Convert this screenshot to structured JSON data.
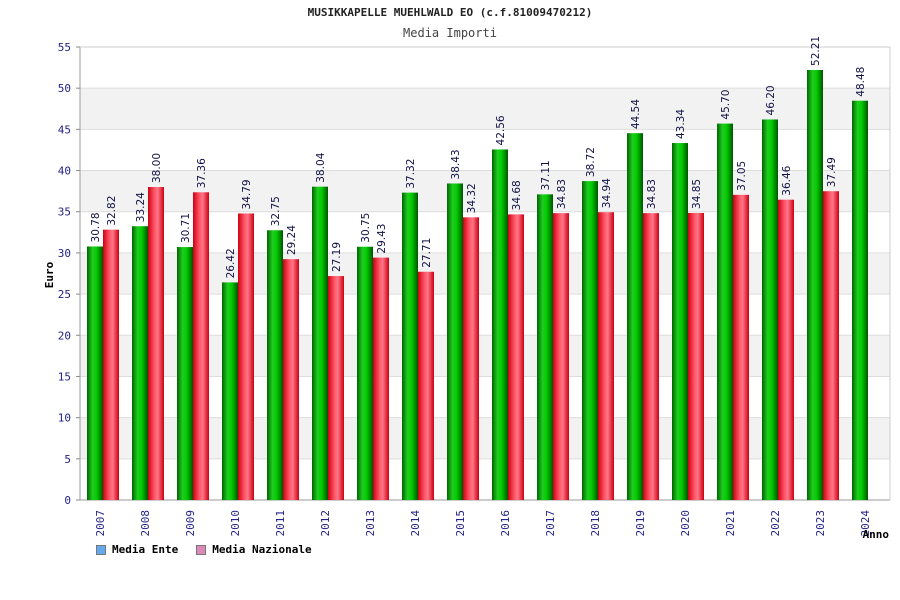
{
  "chart_data": {
    "type": "bar",
    "title": "MUSIKKAPELLE MUEHLWALD EO (c.f.81009470212)",
    "subtitle": "Media Importi",
    "xlabel": "Anno",
    "ylabel": "Euro",
    "ylim": [
      0,
      55
    ],
    "yticks": [
      0,
      5,
      10,
      15,
      20,
      25,
      30,
      35,
      40,
      45,
      50,
      55
    ],
    "categories": [
      "2007",
      "2008",
      "2009",
      "2010",
      "2011",
      "2012",
      "2013",
      "2014",
      "2015",
      "2016",
      "2017",
      "2018",
      "2019",
      "2020",
      "2021",
      "2022",
      "2023",
      "2024"
    ],
    "series": [
      {
        "name": "Media Ente",
        "color": "#00aa00",
        "legend_color": "#66aaee",
        "values": [
          30.78,
          33.24,
          30.71,
          26.42,
          32.75,
          38.04,
          30.75,
          37.32,
          38.43,
          42.56,
          37.11,
          38.72,
          44.54,
          43.34,
          45.7,
          46.2,
          52.21,
          48.48
        ],
        "labels": [
          "30.78",
          "33.24",
          "30.71",
          "26.42",
          "32.75",
          "38.04",
          "30.75",
          "37.32",
          "38.43",
          "42.56",
          "37.11",
          "38.72",
          "44.54",
          "43.34",
          "45.70",
          "46.20",
          "52.21",
          "48.48"
        ]
      },
      {
        "name": "Media Nazionale",
        "color": "#ee1122",
        "legend_color": "#dd88bb",
        "values": [
          32.82,
          38.0,
          37.36,
          34.79,
          29.24,
          27.19,
          29.43,
          27.71,
          34.32,
          34.68,
          34.83,
          34.94,
          34.83,
          34.85,
          37.05,
          36.46,
          37.49,
          null
        ],
        "labels": [
          "32.82",
          "38.00",
          "37.36",
          "34.79",
          "29.24",
          "27.19",
          "29.43",
          "27.71",
          "34.32",
          "34.68",
          "34.83",
          "34.94",
          "34.83",
          "34.85",
          "37.05",
          "36.46",
          "37.49",
          null
        ]
      }
    ],
    "grid": true,
    "legend_position": "bottom-left"
  }
}
